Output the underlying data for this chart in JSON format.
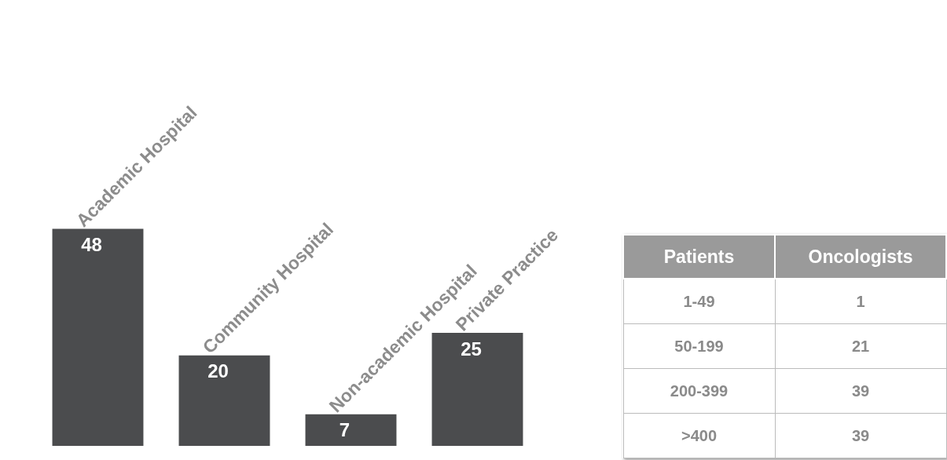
{
  "chart_data": [
    {
      "type": "bar",
      "categories": [
        null,
        null,
        null,
        null
      ],
      "annotations": [
        {
          "text": "Academic Hospital",
          "y": 48
        },
        {
          "text": "Community Hospital",
          "y": 20
        },
        "Non-academic Hospital",
        {
          "text": "Private Practice",
          "y": 25
        }
      ],
      "values": [
        48,
        20,
        7,
        25
      ],
      "color": "#4b4c4e",
      "data_labels": true,
      "legend": false,
      "tick_labels": false
    },
    {
      "type": "other",
      "annotations": [
        "Patients",
        "Oncologists",
        "1-49",
        "1",
        "50-199",
        "21",
        "200-399",
        "39",
        ">400",
        "39"
      ]
    }
  ]
}
